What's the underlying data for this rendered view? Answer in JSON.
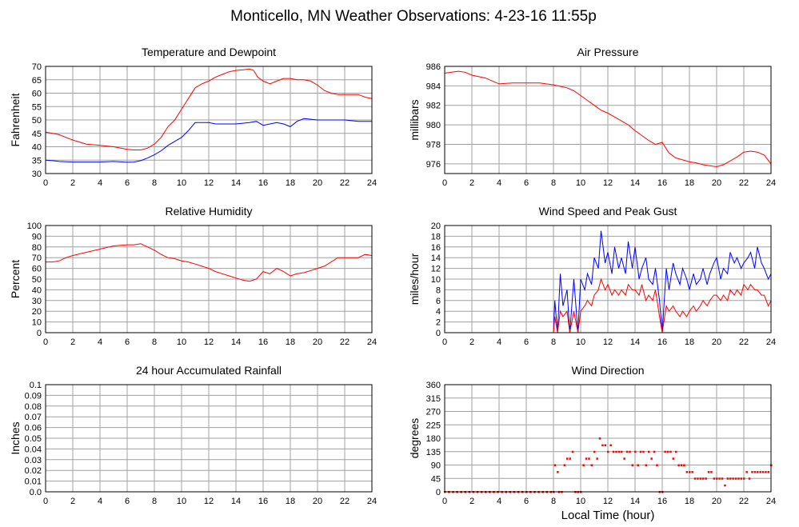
{
  "page": {
    "title": "Monticello, MN Weather Observations: 4-23-16 11:55p"
  },
  "colors": {
    "red": "#ff0000",
    "blue": "#0000ff",
    "grid": "#a0a0a0",
    "frame": "#000000"
  },
  "chart_data": [
    {
      "id": "temperature",
      "type": "line",
      "title": "Temperature and Dewpoint",
      "xlabel": "",
      "ylabel": "Fahrenheit",
      "xlim": [
        0,
        24
      ],
      "ylim": [
        30,
        70
      ],
      "xticks": [
        0,
        2,
        4,
        6,
        8,
        10,
        12,
        14,
        16,
        18,
        20,
        22,
        24
      ],
      "yticks": [
        30,
        35,
        40,
        45,
        50,
        55,
        60,
        65,
        70
      ],
      "grid": true,
      "series": [
        {
          "color": "#ff0000",
          "x": [
            0,
            0.5,
            1,
            1.5,
            2,
            3,
            4,
            5,
            6,
            6.5,
            7,
            7.5,
            8,
            8.5,
            9,
            9.5,
            10,
            10.5,
            11,
            11.5,
            12,
            12.5,
            13,
            13.5,
            14,
            14.5,
            15,
            15.3,
            15.6,
            16,
            16.5,
            17,
            17.5,
            18,
            18.5,
            19,
            19.5,
            20,
            20.5,
            21,
            21.5,
            22,
            22.5,
            23,
            23.5,
            24
          ],
          "y": [
            45.5,
            45,
            44.5,
            43.5,
            42.5,
            41,
            40.5,
            40,
            39,
            38.8,
            38.8,
            39.5,
            41,
            43.5,
            47.5,
            50,
            54,
            58,
            62,
            63.5,
            64.5,
            66,
            67,
            68,
            68.5,
            68.7,
            69,
            68.5,
            66,
            64.5,
            63.5,
            64.5,
            65.5,
            65.5,
            65,
            65,
            64.5,
            63,
            61,
            60,
            59.5,
            59.5,
            59.5,
            59.5,
            58.5,
            58
          ]
        },
        {
          "color": "#0000ff",
          "x": [
            0,
            0.5,
            1,
            2,
            3,
            4,
            5,
            6,
            6.5,
            7,
            7.5,
            8,
            8.5,
            9,
            9.5,
            10,
            10.5,
            11,
            11.5,
            12,
            12.5,
            13,
            14,
            15,
            15.5,
            16,
            16.5,
            17,
            17.5,
            18,
            18.5,
            19,
            20,
            21,
            22,
            23,
            24
          ],
          "y": [
            35,
            34.8,
            34.5,
            34.3,
            34.3,
            34.3,
            34.5,
            34.2,
            34.3,
            34.8,
            35.8,
            37,
            38.5,
            40.5,
            42,
            43.5,
            46,
            49,
            49,
            49,
            48.5,
            48.5,
            48.5,
            49,
            49.5,
            48,
            48.5,
            49,
            48.5,
            47.5,
            49.5,
            50.5,
            50,
            50,
            50,
            49.5,
            49.5
          ]
        }
      ]
    },
    {
      "id": "pressure",
      "type": "line",
      "title": "Air Pressure",
      "xlabel": "",
      "ylabel": "millibars",
      "xlim": [
        0,
        24
      ],
      "ylim": [
        975,
        986
      ],
      "xticks": [
        0,
        2,
        4,
        6,
        8,
        10,
        12,
        14,
        16,
        18,
        20,
        22,
        24
      ],
      "yticks": [
        976,
        978,
        980,
        982,
        984,
        986
      ],
      "grid": true,
      "series": [
        {
          "color": "#ff0000",
          "x": [
            0,
            0.5,
            1,
            1.5,
            2,
            3,
            4,
            5,
            6,
            7,
            8,
            9,
            9.5,
            10,
            10.5,
            11,
            11.5,
            12,
            12.5,
            13,
            13.5,
            14,
            14.5,
            15,
            15.5,
            16,
            16.5,
            17,
            17.5,
            18,
            18.5,
            19,
            19.5,
            20,
            20.5,
            21,
            21.5,
            22,
            22.5,
            23,
            23.5,
            24
          ],
          "y": [
            985.3,
            985.4,
            985.5,
            985.4,
            985.1,
            984.8,
            984.2,
            984.3,
            984.3,
            984.3,
            984.1,
            983.8,
            983.5,
            983,
            982.5,
            982,
            981.5,
            981.2,
            980.8,
            980.4,
            980,
            979.4,
            978.9,
            978.4,
            978,
            978.2,
            977.1,
            976.6,
            976.4,
            976.2,
            976.1,
            975.9,
            975.8,
            975.7,
            975.9,
            976.3,
            976.7,
            977.2,
            977.3,
            977.2,
            976.9,
            976
          ]
        }
      ]
    },
    {
      "id": "humidity",
      "type": "line",
      "title": "Relative Humidity",
      "xlabel": "",
      "ylabel": "Percent",
      "xlim": [
        0,
        24
      ],
      "ylim": [
        0,
        100
      ],
      "xticks": [
        0,
        2,
        4,
        6,
        8,
        10,
        12,
        14,
        16,
        18,
        20,
        22,
        24
      ],
      "yticks": [
        0,
        10,
        20,
        30,
        40,
        50,
        60,
        70,
        80,
        90,
        100
      ],
      "grid": true,
      "series": [
        {
          "color": "#ff0000",
          "x": [
            0,
            0.5,
            1,
            1.5,
            2,
            3,
            4,
            5,
            6,
            6.5,
            7,
            7.5,
            8,
            8.5,
            9,
            9.5,
            10,
            10.5,
            11,
            11.5,
            12,
            12.5,
            13,
            13.5,
            14,
            14.5,
            15,
            15.5,
            16,
            16.5,
            17,
            17.5,
            18,
            18.5,
            19,
            19.5,
            20,
            20.5,
            21,
            21.5,
            22,
            22.5,
            23,
            23.5,
            24
          ],
          "y": [
            66,
            66,
            67,
            70,
            72,
            75,
            78,
            81,
            82,
            82,
            83,
            80,
            77,
            73,
            70,
            69,
            67,
            66,
            64,
            62,
            60,
            57,
            55,
            53,
            51,
            49,
            48,
            50,
            57,
            55,
            60,
            57,
            53,
            55,
            56,
            58,
            60,
            62,
            66,
            70,
            70,
            70,
            70,
            73,
            72
          ]
        }
      ]
    },
    {
      "id": "wind",
      "type": "line",
      "title": "Wind Speed and Peak Gust",
      "xlabel": "",
      "ylabel": "miles/hour",
      "xlim": [
        0,
        24
      ],
      "ylim": [
        0,
        20
      ],
      "xticks": [
        0,
        2,
        4,
        6,
        8,
        10,
        12,
        14,
        16,
        18,
        20,
        22,
        24
      ],
      "yticks": [
        0,
        2,
        4,
        6,
        8,
        10,
        12,
        14,
        16,
        18,
        20
      ],
      "grid": true,
      "series": [
        {
          "color": "#0000ff",
          "x": [
            0,
            8,
            8.1,
            8.3,
            8.5,
            8.7,
            9,
            9.2,
            9.5,
            9.8,
            10,
            10.3,
            10.5,
            10.8,
            11,
            11.3,
            11.5,
            11.8,
            12,
            12.3,
            12.5,
            12.8,
            13,
            13.3,
            13.5,
            13.8,
            14,
            14.3,
            14.5,
            14.8,
            15,
            15.3,
            15.5,
            15.8,
            16,
            16.3,
            16.5,
            16.8,
            17,
            17.3,
            17.5,
            17.8,
            18,
            18.3,
            18.5,
            18.8,
            19,
            19.3,
            19.5,
            19.8,
            20,
            20.3,
            20.5,
            20.8,
            21,
            21.3,
            21.5,
            21.8,
            22,
            22.3,
            22.5,
            22.8,
            23,
            23.3,
            23.5,
            23.8,
            24
          ],
          "y": [
            0,
            0,
            6,
            0,
            11,
            5,
            8,
            0,
            10,
            0,
            10,
            8,
            11,
            9,
            14,
            12,
            19,
            13,
            15,
            11,
            16,
            12,
            14,
            11,
            17,
            12,
            16,
            10,
            12,
            14,
            10,
            9,
            12,
            6,
            0,
            12,
            8,
            13,
            11,
            9,
            12,
            10,
            8,
            11,
            9,
            10,
            12,
            9,
            11,
            13,
            14,
            10,
            12,
            11,
            15,
            13,
            14,
            12,
            13,
            14,
            15,
            12,
            16,
            13,
            12,
            10,
            11
          ]
        },
        {
          "color": "#ff0000",
          "x": [
            0,
            8,
            8.1,
            8.3,
            8.5,
            8.7,
            9,
            9.2,
            9.5,
            9.8,
            10,
            10.3,
            10.5,
            10.8,
            11,
            11.3,
            11.5,
            11.8,
            12,
            12.3,
            12.5,
            12.8,
            13,
            13.3,
            13.5,
            13.8,
            14,
            14.3,
            14.5,
            14.8,
            15,
            15.3,
            15.5,
            15.8,
            16,
            16.3,
            16.5,
            16.8,
            17,
            17.3,
            17.5,
            17.8,
            18,
            18.3,
            18.5,
            18.8,
            19,
            19.3,
            19.5,
            19.8,
            20,
            20.3,
            20.5,
            20.8,
            21,
            21.3,
            21.5,
            21.8,
            22,
            22.3,
            22.5,
            22.8,
            23,
            23.3,
            23.5,
            23.8,
            24
          ],
          "y": [
            0,
            0,
            3,
            0,
            4,
            3,
            4,
            0,
            4,
            0,
            4,
            5,
            6,
            5,
            7,
            8,
            10,
            8,
            9,
            7,
            8,
            7,
            8,
            7,
            9,
            8,
            8,
            7,
            9,
            6,
            7,
            6,
            8,
            3,
            0,
            5,
            4,
            5,
            4,
            3,
            4,
            3,
            4,
            5,
            4,
            5,
            6,
            5,
            6,
            7,
            7,
            6,
            7,
            6,
            8,
            7,
            8,
            7,
            9,
            8,
            9,
            8,
            8,
            7,
            7,
            5,
            6
          ]
        }
      ]
    },
    {
      "id": "rainfall",
      "type": "line",
      "title": "24 hour Accumulated Rainfall",
      "xlabel": "",
      "ylabel": "Inches",
      "xlim": [
        0,
        24
      ],
      "ylim": [
        0,
        0.1
      ],
      "xticks": [
        0,
        2,
        4,
        6,
        8,
        10,
        12,
        14,
        16,
        18,
        20,
        22,
        24
      ],
      "yticks": [
        0.0,
        0.01,
        0.02,
        0.03,
        0.04,
        0.05,
        0.06,
        0.07,
        0.08,
        0.09,
        0.1
      ],
      "ytick_labels": [
        "0.0",
        "0.01",
        "0.02",
        "0.03",
        "0.04",
        "0.05",
        "0.06",
        "0.07",
        "0.08",
        "0.09",
        "0.1"
      ],
      "grid": true,
      "series": [
        {
          "color": "#ff0000",
          "x": [
            0,
            24
          ],
          "y": [
            0,
            0
          ]
        }
      ]
    },
    {
      "id": "direction",
      "type": "scatter",
      "title": "Wind Direction",
      "xlabel": "Local Time (hour)",
      "ylabel": "degrees",
      "xlim": [
        0,
        24
      ],
      "ylim": [
        0,
        360
      ],
      "xticks": [
        0,
        2,
        4,
        6,
        8,
        10,
        12,
        14,
        16,
        18,
        20,
        22,
        24
      ],
      "yticks": [
        0,
        45,
        90,
        135,
        180,
        225,
        270,
        315,
        360
      ],
      "grid": true,
      "series": [
        {
          "color": "#ff0000",
          "x": [
            0,
            0.3,
            0.6,
            0.9,
            1.2,
            1.5,
            1.8,
            2.1,
            2.4,
            2.7,
            3,
            3.3,
            3.6,
            3.9,
            4.2,
            4.5,
            4.8,
            5.1,
            5.4,
            5.7,
            6,
            6.3,
            6.6,
            6.9,
            7.2,
            7.5,
            7.8,
            8.0,
            8.1,
            8.3,
            8.4,
            8.6,
            8.8,
            9.0,
            9.2,
            9.4,
            9.6,
            9.8,
            10.0,
            10.2,
            10.4,
            10.6,
            10.8,
            11.0,
            11.2,
            11.4,
            11.6,
            11.8,
            12.0,
            12.2,
            12.4,
            12.6,
            12.8,
            13.0,
            13.2,
            13.4,
            13.6,
            13.8,
            14.0,
            14.2,
            14.4,
            14.6,
            14.8,
            15.0,
            15.2,
            15.4,
            15.6,
            15.8,
            16.0,
            16.2,
            16.4,
            16.6,
            16.8,
            17.0,
            17.2,
            17.4,
            17.6,
            17.8,
            18.0,
            18.2,
            18.4,
            18.6,
            18.8,
            19.0,
            19.2,
            19.4,
            19.6,
            19.8,
            20.0,
            20.2,
            20.4,
            20.6,
            20.8,
            21.0,
            21.2,
            21.4,
            21.6,
            21.8,
            22.0,
            22.2,
            22.4,
            22.6,
            22.8,
            23.0,
            23.2,
            23.4,
            23.6,
            23.8,
            24.0
          ],
          "y": [
            0,
            0,
            0,
            0,
            0,
            0,
            0,
            0,
            0,
            0,
            0,
            0,
            0,
            0,
            0,
            0,
            0,
            0,
            0,
            0,
            0,
            0,
            0,
            0,
            0,
            0,
            0,
            0,
            90,
            67,
            0,
            0,
            90,
            112,
            112,
            135,
            0,
            0,
            0,
            90,
            112,
            112,
            90,
            135,
            112,
            180,
            157,
            157,
            135,
            157,
            135,
            135,
            135,
            135,
            112,
            135,
            135,
            90,
            135,
            90,
            135,
            135,
            90,
            135,
            112,
            135,
            90,
            0,
            0,
            135,
            135,
            135,
            112,
            135,
            90,
            90,
            90,
            67,
            67,
            67,
            45,
            45,
            45,
            45,
            45,
            67,
            67,
            45,
            45,
            45,
            45,
            22,
            45,
            45,
            45,
            45,
            45,
            45,
            45,
            67,
            45,
            67,
            67,
            67,
            67,
            67,
            67,
            67,
            90
          ]
        }
      ]
    }
  ]
}
